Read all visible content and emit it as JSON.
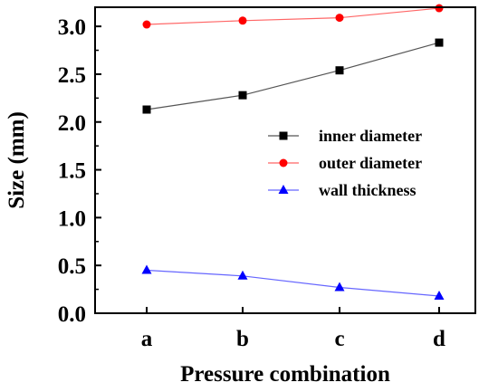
{
  "chart_data": {
    "type": "line",
    "title": "",
    "xlabel": "Pressure combination",
    "ylabel": "Size (mm)",
    "categories": [
      "a",
      "b",
      "c",
      "d"
    ],
    "ylim": [
      0.0,
      3.2
    ],
    "yticks": [
      "0.0",
      "0.5",
      "1.0",
      "1.5",
      "2.0",
      "2.5",
      "3.0"
    ],
    "grid": false,
    "legend_position": "center-right",
    "series": [
      {
        "name": "inner diameter",
        "values": [
          2.13,
          2.28,
          2.54,
          2.83
        ],
        "color": "#000000",
        "line_color": "#555555",
        "marker": "square"
      },
      {
        "name": "outer diameter",
        "values": [
          3.02,
          3.06,
          3.09,
          3.19
        ],
        "color": "#ff0000",
        "line_color": "#ff6666",
        "marker": "circle"
      },
      {
        "name": "wall thickness",
        "values": [
          0.45,
          0.39,
          0.27,
          0.18
        ],
        "color": "#0000ff",
        "line_color": "#6666ff",
        "marker": "triangle"
      }
    ]
  }
}
